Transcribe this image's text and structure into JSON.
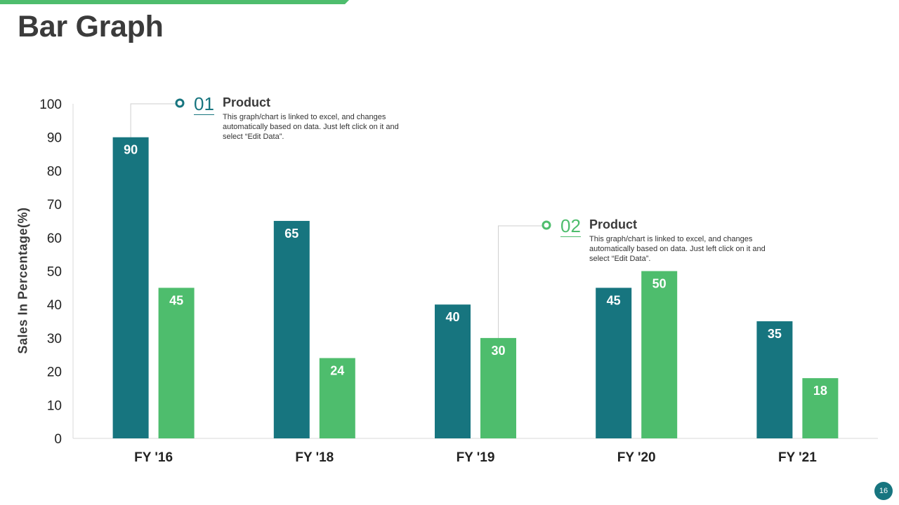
{
  "title": "Bar Graph",
  "page_number": "16",
  "colors": {
    "accent": "#4ebd6d",
    "series1": "#17757f",
    "series2": "#4ebd6d",
    "text": "#3b3b3b"
  },
  "callouts": [
    {
      "number": "01",
      "heading": "Product",
      "text": "This graph/chart is linked to excel, and changes automatically based on data. Just left click on it and select “Edit Data”."
    },
    {
      "number": "02",
      "heading": "Product",
      "text": "This graph/chart is linked to excel, and changes automatically based on data. Just left click on it and select “Edit Data”."
    }
  ],
  "chart_data": {
    "type": "bar",
    "title": "",
    "xlabel": "",
    "ylabel": "Sales In Percentage(%)",
    "categories": [
      "FY '16",
      "FY '18",
      "FY '19",
      "FY '20",
      "FY '21"
    ],
    "series": [
      {
        "name": "Product 01",
        "values": [
          90,
          65,
          40,
          45,
          35
        ]
      },
      {
        "name": "Product 02",
        "values": [
          45,
          24,
          30,
          50,
          18
        ]
      }
    ],
    "ylim": [
      0,
      100
    ],
    "yticks": [
      0,
      10,
      20,
      30,
      40,
      50,
      60,
      70,
      80,
      90,
      100
    ],
    "grid": false,
    "legend": "none",
    "data_labels": true
  }
}
